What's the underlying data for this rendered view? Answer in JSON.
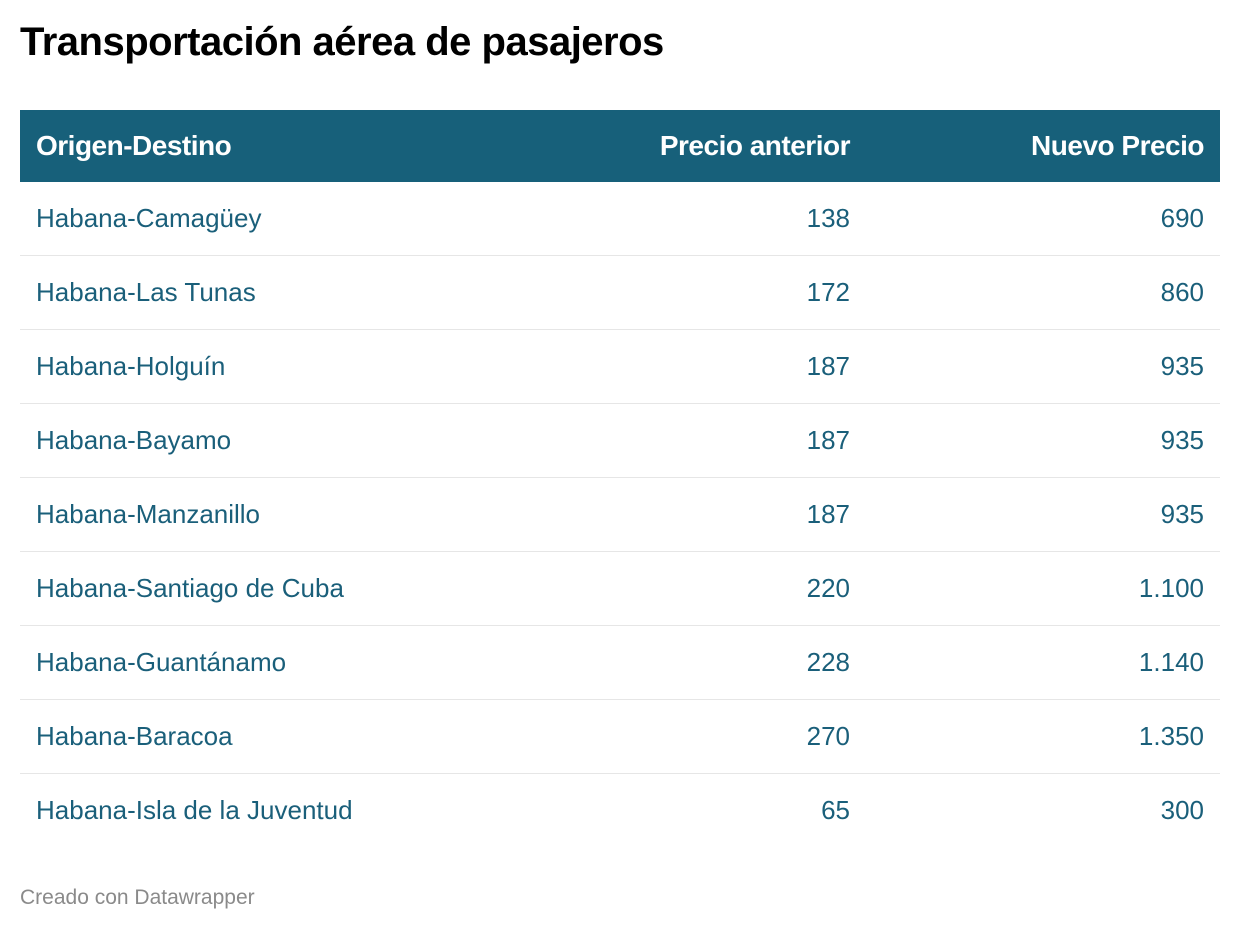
{
  "title": "Transportación aérea de pasajeros",
  "chart_data": {
    "type": "table",
    "title": "Transportación aérea de pasajeros",
    "columns": [
      "Origen-Destino",
      "Precio anterior",
      "Nuevo Precio"
    ],
    "rows": [
      [
        "Habana-Camagüey",
        "138",
        "690"
      ],
      [
        "Habana-Las Tunas",
        "172",
        "860"
      ],
      [
        "Habana-Holguín",
        "187",
        "935"
      ],
      [
        "Habana-Bayamo",
        "187",
        "935"
      ],
      [
        "Habana-Manzanillo",
        "187",
        "935"
      ],
      [
        "Habana-Santiago de Cuba",
        "220",
        "1.100"
      ],
      [
        "Habana-Guantánamo",
        "228",
        "1.140"
      ],
      [
        "Habana-Baracoa",
        "270",
        "1.350"
      ],
      [
        "Habana-Isla de la Juventud",
        "65",
        "300"
      ]
    ]
  },
  "colors": {
    "header_bg": "#17607a",
    "cell_text": "#1a5f7a"
  },
  "footer": "Creado con Datawrapper"
}
